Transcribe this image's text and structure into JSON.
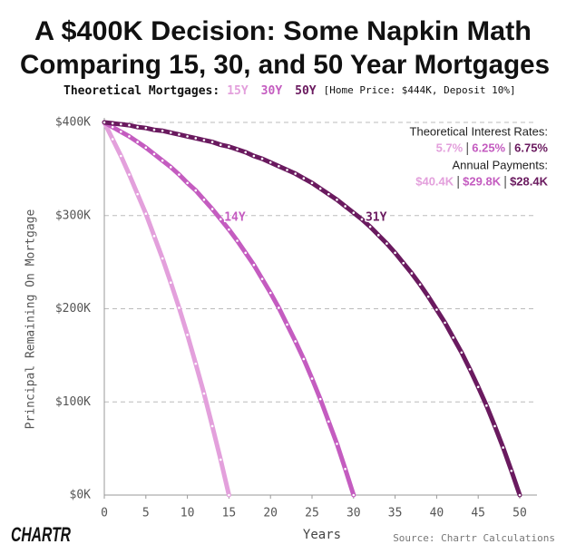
{
  "chart_data": {
    "type": "line",
    "title": [
      "A $400K Decision: Some Napkin Math",
      "Comparing 15, 30, and 50 Year Mortgages"
    ],
    "subtitle_prefix": "Theoretical Mortgages:",
    "subtitle_suffix": "[Home Price: $444K, Deposit 10%]",
    "x_label": "Years",
    "y_label": "Principal Remaining On Mortgage",
    "rates_title": "Theoretical Interest Rates:",
    "rates": [
      "5.7%",
      "6.25%",
      "6.75%"
    ],
    "payments_title": "Annual Payments:",
    "payments": [
      "$40.4K",
      "$29.8K",
      "$28.4K"
    ],
    "annotations": [
      {
        "text": "14Y",
        "series": 1,
        "x": 14
      },
      {
        "text": "31Y",
        "series": 2,
        "x": 31
      }
    ],
    "source": "Source: Chartr Calculations",
    "logo": "CHARTR",
    "x": [
      0,
      1,
      2,
      3,
      4,
      5,
      6,
      7,
      8,
      9,
      10,
      11,
      12,
      13,
      14,
      15,
      16,
      17,
      18,
      19,
      20,
      21,
      22,
      23,
      24,
      25,
      26,
      27,
      28,
      29,
      30,
      31,
      32,
      33,
      34,
      35,
      36,
      37,
      38,
      39,
      40,
      41,
      42,
      43,
      44,
      45,
      46,
      47,
      48,
      49,
      50
    ],
    "series": [
      {
        "name": "15Y",
        "color": "#e3a0dc",
        "values": [
          400,
          382,
          364,
          344,
          323,
          302,
          278,
          254,
          228,
          201,
          172,
          141,
          109,
          74,
          38,
          0,
          null,
          null,
          null,
          null,
          null,
          null,
          null,
          null,
          null,
          null,
          null,
          null,
          null,
          null,
          null,
          null,
          null,
          null,
          null,
          null,
          null,
          null,
          null,
          null,
          null,
          null,
          null,
          null,
          null,
          null,
          null,
          null,
          null,
          null,
          null
        ]
      },
      {
        "name": "30Y",
        "color": "#c45cc0",
        "values": [
          400,
          395,
          390,
          385,
          379,
          373,
          366,
          359,
          352,
          344,
          335,
          327,
          317,
          307,
          296,
          285,
          273,
          260,
          247,
          232,
          217,
          201,
          183,
          165,
          146,
          125,
          103,
          79,
          55,
          28,
          0,
          null,
          null,
          null,
          null,
          null,
          null,
          null,
          null,
          null,
          null,
          null,
          null,
          null,
          null,
          null,
          null,
          null,
          null,
          null,
          null
        ]
      },
      {
        "name": "50Y",
        "color": "#6a1a5f",
        "values": [
          400,
          399,
          398,
          397,
          395,
          394,
          392,
          391,
          389,
          387,
          385,
          383,
          381,
          379,
          376,
          374,
          371,
          368,
          364,
          361,
          357,
          353,
          349,
          345,
          340,
          335,
          329,
          323,
          317,
          310,
          303,
          296,
          288,
          279,
          270,
          260,
          249,
          238,
          226,
          213,
          199,
          185,
          169,
          153,
          135,
          116,
          96,
          74,
          51,
          26,
          0
        ]
      }
    ],
    "xlim": [
      0,
      50
    ],
    "xticks": [
      0,
      5,
      10,
      15,
      20,
      25,
      30,
      35,
      40,
      45,
      50
    ],
    "ylim": [
      0,
      400
    ],
    "yticks": [
      {
        "value": 0,
        "label": "$0K"
      },
      {
        "value": 100,
        "label": "$100K"
      },
      {
        "value": 200,
        "label": "$200K"
      },
      {
        "value": 300,
        "label": "$300K"
      },
      {
        "value": 400,
        "label": "$400K"
      }
    ],
    "grid": true
  }
}
